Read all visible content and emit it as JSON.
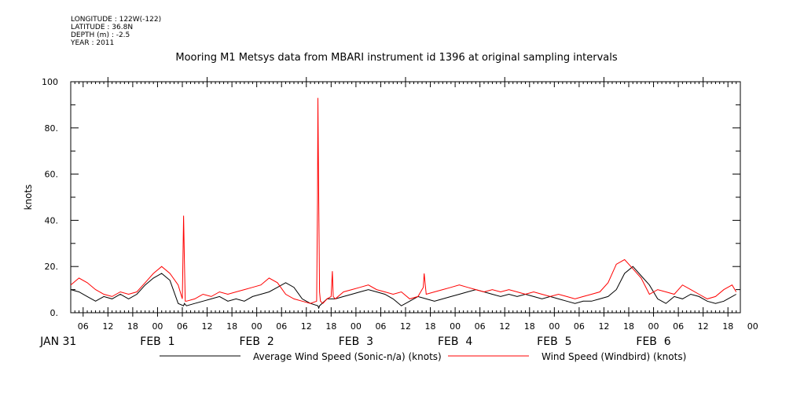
{
  "meta": {
    "longitude": "LONGITUDE : 122W(-122)",
    "latitude": "LATITUDE : 36.8N",
    "depth": "DEPTH (m) : -2.5",
    "year": "YEAR : 2011"
  },
  "chart_data": {
    "type": "line",
    "title": "Mooring M1 Metsys data from MBARI instrument id 1396 at original sampling intervals",
    "ylabel": "knots",
    "xlabel": "",
    "ylim": [
      0,
      100
    ],
    "yticks": [
      "0.",
      "20.",
      "40.",
      "60.",
      "80.",
      "100"
    ],
    "xlim_hours": [
      -9,
      153
    ],
    "hour_tick_labels": [
      "06",
      "12",
      "18",
      "00",
      "06",
      "12",
      "18",
      "00",
      "06",
      "12",
      "18",
      "00",
      "06",
      "12",
      "18",
      "00",
      "06",
      "12",
      "18",
      "00",
      "06",
      "12",
      "18",
      "00",
      "06",
      "12",
      "18",
      "00"
    ],
    "day_labels": [
      "JAN 31",
      "FEB  1",
      "FEB  2",
      "FEB  3",
      "FEB  4",
      "FEB  5",
      "FEB  6"
    ],
    "grid": false,
    "series": [
      {
        "name": "Average Wind Speed (Sonic-n/a) (knots)",
        "color": "#000000",
        "x_hours": [
          -9,
          -7,
          -5,
          -3,
          -1,
          1,
          3,
          5,
          7,
          9,
          11,
          13,
          15,
          17,
          18.3,
          18.5,
          19,
          21,
          23,
          25,
          27,
          29,
          31,
          33,
          35,
          37,
          39,
          41,
          43,
          45,
          47,
          49,
          50.8,
          51,
          51.2,
          53,
          55,
          57,
          59,
          61,
          63,
          65,
          67,
          69,
          71,
          73,
          75,
          77,
          79,
          81,
          83,
          85,
          87,
          89,
          91,
          93,
          95,
          97,
          99,
          101,
          103,
          105,
          107,
          109,
          111,
          113,
          115,
          117,
          119,
          121,
          123,
          125,
          127,
          129,
          131,
          133,
          135,
          137,
          139,
          141,
          143,
          145,
          147,
          149,
          151,
          152
        ],
        "values": [
          10,
          9,
          7,
          5,
          7,
          6,
          8,
          6,
          8,
          12,
          15,
          17,
          14,
          4,
          3,
          4,
          3,
          4,
          5,
          6,
          7,
          5,
          6,
          5,
          7,
          8,
          9,
          11,
          13,
          11,
          6,
          4,
          3,
          2,
          3,
          6,
          6,
          7,
          8,
          9,
          10,
          9,
          8,
          6,
          3,
          5,
          7,
          6,
          5,
          6,
          7,
          8,
          9,
          10,
          9,
          8,
          7,
          8,
          7,
          8,
          7,
          6,
          7,
          6,
          5,
          4,
          5,
          5,
          6,
          7,
          10,
          17,
          20,
          16,
          12,
          6,
          4,
          7,
          6,
          8,
          7,
          5,
          4,
          5,
          7,
          8
        ]
      },
      {
        "name": "Wind Speed (Windbird) (knots)",
        "color": "#ff0000",
        "x_hours": [
          -9,
          -7,
          -5,
          -3,
          -1,
          1,
          3,
          5,
          7,
          9,
          11,
          13,
          15,
          17,
          18,
          18.3,
          18.5,
          18.7,
          19,
          21,
          23,
          25,
          27,
          29,
          31,
          33,
          35,
          37,
          39,
          41,
          43,
          45,
          47,
          49,
          50.5,
          50.7,
          50.8,
          51,
          51.2,
          51.4,
          52,
          53,
          54,
          54.3,
          54.5,
          55,
          57,
          59,
          61,
          63,
          65,
          67,
          69,
          71,
          73,
          75,
          76.3,
          76.5,
          77,
          79,
          81,
          83,
          85,
          87,
          89,
          91,
          93,
          95,
          97,
          99,
          101,
          103,
          105,
          107,
          109,
          111,
          113,
          115,
          117,
          119,
          121,
          123,
          125,
          127,
          129,
          131,
          133,
          135,
          137,
          139,
          141,
          143,
          145,
          147,
          149,
          151,
          152
        ],
        "values": [
          12,
          15,
          13,
          10,
          8,
          7,
          9,
          8,
          9,
          13,
          17,
          20,
          17,
          12,
          6,
          42,
          23,
          5,
          5,
          6,
          8,
          7,
          9,
          8,
          9,
          10,
          11,
          12,
          15,
          13,
          8,
          6,
          5,
          4,
          5,
          48,
          93,
          47,
          9,
          5,
          4,
          6,
          7,
          18,
          7,
          6,
          9,
          10,
          11,
          12,
          10,
          9,
          8,
          9,
          6,
          7,
          11,
          17,
          8,
          9,
          10,
          11,
          12,
          11,
          10,
          9,
          10,
          9,
          10,
          9,
          8,
          9,
          8,
          7,
          8,
          7,
          6,
          7,
          8,
          9,
          13,
          21,
          23,
          19,
          15,
          8,
          10,
          9,
          8,
          12,
          10,
          8,
          6,
          7,
          10,
          12,
          9
        ]
      }
    ]
  }
}
